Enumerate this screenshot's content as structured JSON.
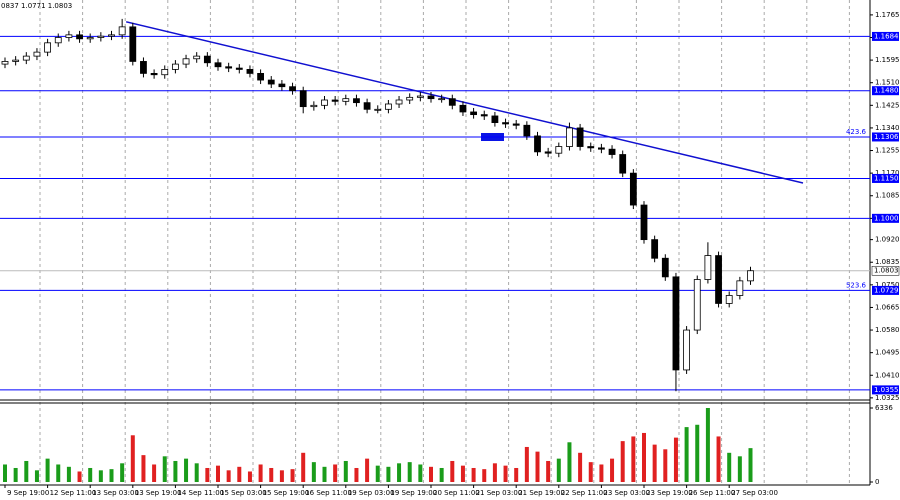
{
  "chart_data": {
    "type": "candlestick",
    "header": "0837 1.0771 1.0803",
    "ylim": [
      1.0317,
      1.1821
    ],
    "yticks": [
      1.1765,
      {
        "value": 1.168,
        "label": "1.1680"
      },
      1.1595,
      {
        "value": 1.151,
        "label": "1.1510"
      },
      1.1425,
      {
        "value": 1.134,
        "label": "1.1340"
      },
      1.1255,
      {
        "value": 1.117,
        "label": "1.1170"
      },
      1.1085,
      {
        "value": 1.1,
        "label": "1.1000"
      },
      {
        "value": 1.092,
        "label": "1.0920"
      },
      1.0835,
      {
        "value": 1.075,
        "label": "1.0750"
      },
      1.0665,
      {
        "value": 1.058,
        "label": "1.0580"
      },
      1.0495,
      {
        "value": 1.041,
        "label": "1.0410"
      },
      1.0325
    ],
    "levels": [
      1.1684,
      {
        "value": 1.148,
        "label": "1.1480"
      },
      {
        "value": 1.1306,
        "label": "1.1306",
        "fib": "423.6"
      },
      {
        "value": 1.115,
        "label": "1.1150"
      },
      {
        "value": 1.1,
        "label": "1.1000"
      },
      {
        "value": 1.0729,
        "label": "1.0729",
        "fib": "523.6"
      },
      1.0355
    ],
    "level_color": "#0000ff",
    "current_price": 1.0803,
    "trendline": {
      "from": 1.1739,
      "to": 1.1133,
      "color": "#1010d0"
    },
    "time_labels": [
      "9 Sep 19:00",
      "12 Sep 11:00",
      "13 Sep 03:00",
      "13 Sep 19:00",
      "14 Sep 11:00",
      "15 Sep 03:00",
      "15 Sep 19:00",
      "16 Sep 11:00",
      "19 Sep 03:00",
      "19 Sep 19:00",
      "20 Sep 11:00",
      "21 Sep 03:00",
      "21 Sep 19:00",
      "22 Sep 11:00",
      "23 Sep 03:00",
      "23 Sep 19:00",
      "26 Sep 11:00",
      "27 Sep 03:00"
    ],
    "ohlc": [
      [
        1.158,
        1.1605,
        1.1565,
        1.159
      ],
      [
        1.159,
        1.161,
        1.1575,
        1.1595
      ],
      [
        1.1595,
        1.1625,
        1.158,
        1.161
      ],
      [
        1.161,
        1.164,
        1.1595,
        1.1625
      ],
      [
        1.1625,
        1.1675,
        1.161,
        1.166
      ],
      [
        1.166,
        1.1695,
        1.1645,
        1.168
      ],
      [
        1.168,
        1.1705,
        1.1665,
        1.169
      ],
      [
        1.169,
        1.1705,
        1.166,
        1.1675
      ],
      [
        1.1675,
        1.1695,
        1.166,
        1.168
      ],
      [
        1.168,
        1.17,
        1.1665,
        1.1685
      ],
      [
        1.1685,
        1.1705,
        1.167,
        1.169
      ],
      [
        1.169,
        1.175,
        1.1675,
        1.172
      ],
      [
        1.172,
        1.1735,
        1.1575,
        1.159
      ],
      [
        1.159,
        1.1605,
        1.153,
        1.1545
      ],
      [
        1.1545,
        1.156,
        1.1525,
        1.154
      ],
      [
        1.154,
        1.1575,
        1.1525,
        1.156
      ],
      [
        1.156,
        1.1595,
        1.1545,
        1.158
      ],
      [
        1.158,
        1.1615,
        1.1565,
        1.16
      ],
      [
        1.16,
        1.1625,
        1.1585,
        1.161
      ],
      [
        1.161,
        1.1625,
        1.157,
        1.1585
      ],
      [
        1.1585,
        1.16,
        1.1555,
        1.157
      ],
      [
        1.157,
        1.1585,
        1.155,
        1.1565
      ],
      [
        1.1565,
        1.158,
        1.1545,
        1.156
      ],
      [
        1.156,
        1.1575,
        1.153,
        1.1545
      ],
      [
        1.1545,
        1.156,
        1.1505,
        1.152
      ],
      [
        1.152,
        1.1535,
        1.149,
        1.1505
      ],
      [
        1.1505,
        1.152,
        1.148,
        1.1495
      ],
      [
        1.1495,
        1.151,
        1.1465,
        1.148
      ],
      [
        1.148,
        1.1495,
        1.1395,
        1.142
      ],
      [
        1.142,
        1.144,
        1.1405,
        1.1425
      ],
      [
        1.1425,
        1.146,
        1.141,
        1.1445
      ],
      [
        1.1445,
        1.146,
        1.1425,
        1.144
      ],
      [
        1.144,
        1.1465,
        1.1425,
        1.145
      ],
      [
        1.145,
        1.1465,
        1.142,
        1.1435
      ],
      [
        1.1435,
        1.145,
        1.1395,
        1.141
      ],
      [
        1.141,
        1.1425,
        1.1395,
        1.141
      ],
      [
        1.141,
        1.1445,
        1.1395,
        1.143
      ],
      [
        1.143,
        1.146,
        1.1415,
        1.1445
      ],
      [
        1.1445,
        1.147,
        1.143,
        1.1455
      ],
      [
        1.1455,
        1.1475,
        1.144,
        1.146
      ],
      [
        1.146,
        1.1475,
        1.1435,
        1.145
      ],
      [
        1.145,
        1.1465,
        1.1435,
        1.145
      ],
      [
        1.145,
        1.1465,
        1.141,
        1.1425
      ],
      [
        1.1425,
        1.144,
        1.1385,
        1.14
      ],
      [
        1.14,
        1.1415,
        1.1375,
        1.139
      ],
      [
        1.139,
        1.1405,
        1.137,
        1.1385
      ],
      [
        1.1385,
        1.14,
        1.1345,
        1.136
      ],
      [
        1.136,
        1.1375,
        1.134,
        1.1355
      ],
      [
        1.1355,
        1.137,
        1.1335,
        1.135
      ],
      [
        1.135,
        1.1365,
        1.1295,
        1.131
      ],
      [
        1.131,
        1.1325,
        1.1235,
        1.125
      ],
      [
        1.125,
        1.1265,
        1.123,
        1.1245
      ],
      [
        1.1245,
        1.1285,
        1.123,
        1.127
      ],
      [
        1.127,
        1.136,
        1.1255,
        1.134
      ],
      [
        1.134,
        1.1355,
        1.1255,
        1.127
      ],
      [
        1.127,
        1.1285,
        1.125,
        1.1265
      ],
      [
        1.1265,
        1.128,
        1.1245,
        1.126
      ],
      [
        1.126,
        1.1275,
        1.1225,
        1.124
      ],
      [
        1.124,
        1.1255,
        1.1155,
        1.117
      ],
      [
        1.117,
        1.1185,
        1.1035,
        1.105
      ],
      [
        1.105,
        1.1065,
        1.0905,
        1.092
      ],
      [
        1.092,
        1.0935,
        1.0835,
        1.085
      ],
      [
        1.085,
        1.0865,
        1.0765,
        1.078
      ],
      [
        1.078,
        1.0795,
        1.035,
        1.043
      ],
      [
        1.043,
        1.0595,
        1.0415,
        1.058
      ],
      [
        1.058,
        1.0785,
        1.0565,
        1.077
      ],
      [
        1.077,
        1.091,
        1.0755,
        1.086
      ],
      [
        1.086,
        1.0875,
        1.0665,
        1.068
      ],
      [
        1.068,
        1.0725,
        1.0665,
        1.071
      ],
      [
        1.071,
        1.078,
        1.0695,
        1.0765
      ],
      [
        1.0765,
        1.0818,
        1.075,
        1.0803
      ]
    ],
    "volumes": [
      1500,
      1200,
      1800,
      1000,
      2000,
      1500,
      1300,
      900,
      1200,
      1000,
      1100,
      1600,
      4000,
      2300,
      1500,
      2200,
      1800,
      2000,
      1600,
      1200,
      1400,
      1000,
      1300,
      900,
      1500,
      1200,
      1000,
      1100,
      2500,
      1700,
      1300,
      1500,
      1800,
      1200,
      2000,
      1400,
      1300,
      1600,
      1700,
      1500,
      1300,
      1200,
      1800,
      1400,
      1200,
      1100,
      1600,
      1400,
      1200,
      3000,
      2600,
      1800,
      2000,
      3400,
      2500,
      1700,
      1500,
      2000,
      3500,
      3900,
      4200,
      3200,
      2800,
      3800,
      4700,
      4900,
      6336,
      3900,
      2500,
      2200,
      2900
    ],
    "vlim": [
      0,
      6336
    ],
    "vticks": [
      6336,
      0
    ],
    "up_color": "#1a9c1a",
    "down_color": "#e02020"
  }
}
